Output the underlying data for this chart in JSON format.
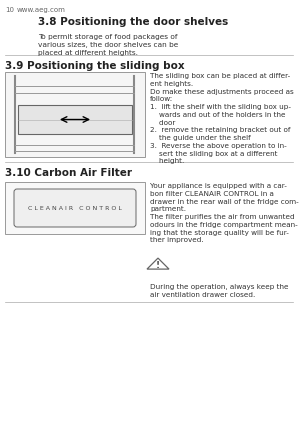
{
  "page_num": "10",
  "website": "www.aeg.com",
  "bg_color": "#ffffff",
  "text_color": "#333333",
  "heading_color": "#222222",
  "section_38_title": "3.8 Positioning the door shelves",
  "section_38_body": "To permit storage of food packages of\nvarious sizes, the door shelves can be\nplaced at different heights.",
  "section_39_title": "3.9 Positioning the sliding box",
  "section_39_right": "The sliding box can be placed at differ-\nent heights.\nDo make these adjustments proceed as\nfollow:\n1.  lift the shelf with the sliding box up-\n    wards and out of the holders in the\n    door\n2.  remove the retaining bracket out of\n    the guide under the shelf\n3.  Reverse the above operation to in-\n    sert the sliding box at a different\n    height.",
  "section_310_title": "3.10 Carbon Air Filter",
  "section_310_right": "Your appliance is equipped with a car-\nbon filter CLEANAIR CONTROL in a\ndrawer in the rear wall of the fridge com-\npartment.\nThe filter purifies the air from unwanted\nodours in the fridge compartment mean-\ning that the storage quality will be fur-\nther improved.",
  "section_310_warning": "During the operation, always keep the\nair ventilation drawer closed.",
  "cleanair_label": "C L E A N A I R   C O N T R O L"
}
